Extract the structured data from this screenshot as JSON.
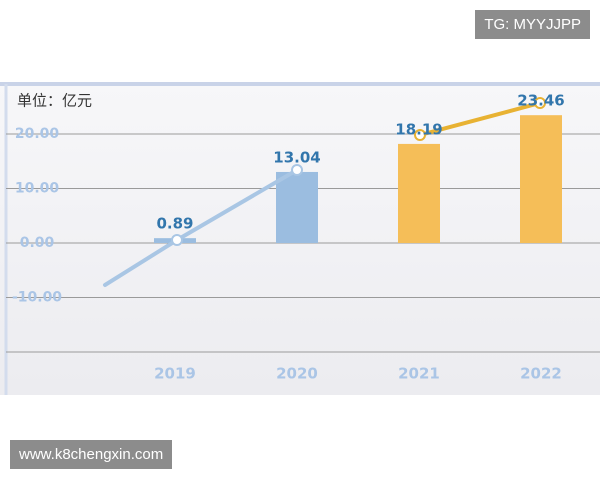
{
  "chart_data": {
    "type": "bar",
    "unit_label": "单位：亿元",
    "categories": [
      "2019",
      "2020",
      "2021",
      "2022"
    ],
    "values": [
      0.89,
      13.04,
      18.19,
      23.46
    ],
    "colors": [
      "#9bbde0",
      "#9bbde0",
      "#f5be58",
      "#f5be58"
    ],
    "ylim": [
      -20,
      29
    ],
    "yticks": [
      {
        "value": 20,
        "label": "20.00"
      },
      {
        "value": 10,
        "label": "10.00"
      },
      {
        "value": 0,
        "label": "0.00"
      },
      {
        "value": -10,
        "label": "-10.00"
      }
    ],
    "grid": true
  },
  "watermarks": {
    "top": "TG: MYYJJPP",
    "bottom": "www.k8chengxin.com"
  }
}
